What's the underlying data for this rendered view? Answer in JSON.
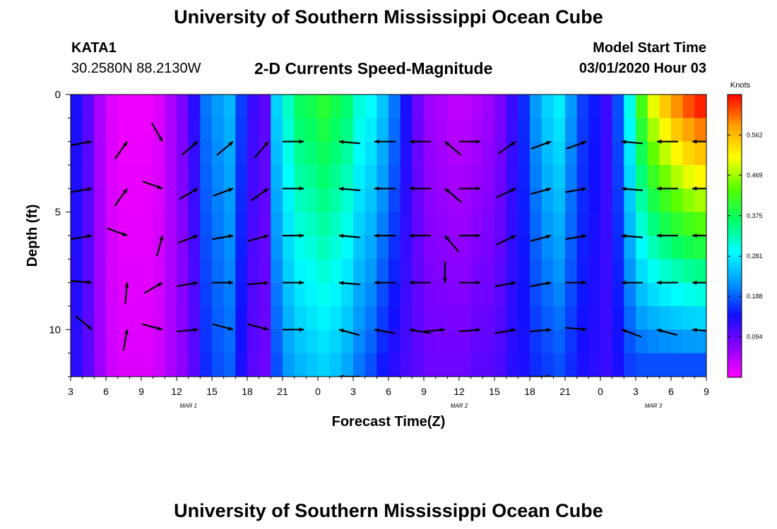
{
  "page": {
    "title_top": "University of Southern Mississippi Ocean Cube",
    "title_bottom": "University of Southern Mississippi Ocean Cube",
    "station_id": "KATA1",
    "station_coords": "30.2580N 88.2130W",
    "plot_title": "2-D Currents Speed-Magnitude",
    "model_start_label": "Model Start Time",
    "model_start_value": "03/01/2020 Hour 03"
  },
  "chart_data": {
    "type": "heatmap",
    "title": "2-D Currents Speed-Magnitude",
    "xlabel": "Forecast Time(Z)",
    "ylabel": "Depth (ft)",
    "x_range_hours": [
      0,
      54
    ],
    "y_range_ft": [
      0,
      12
    ],
    "y_reversed": true,
    "x_tick_labels": [
      "3",
      "6",
      "9",
      "12",
      "15",
      "18",
      "21",
      "0",
      "3",
      "6",
      "9",
      "12",
      "15",
      "18",
      "21",
      "0",
      "3",
      "6",
      "9"
    ],
    "date_labels": [
      {
        "text": "MAR 1",
        "hour": 10
      },
      {
        "text": "MAR 2",
        "hour": 33
      },
      {
        "text": "MAR 3",
        "hour": 49.5
      }
    ],
    "y_ticks": [
      {
        "label": "0",
        "value": 0
      },
      {
        "label": "5",
        "value": 5
      },
      {
        "label": "10",
        "value": 10
      }
    ],
    "colorbar": {
      "unit": "Knots",
      "min": 0.0,
      "max": 0.656,
      "ticks": [
        "0.094",
        "0.188",
        "0.281",
        "0.375",
        "0.469",
        "0.562"
      ],
      "tick_values": [
        0.094,
        0.188,
        0.281,
        0.375,
        0.469,
        0.562
      ],
      "colors": [
        "#ff00ff",
        "#8800ff",
        "#1010ff",
        "#0099ff",
        "#00ffff",
        "#00ff66",
        "#55ff00",
        "#ffff00",
        "#ffa000",
        "#ff0000"
      ]
    },
    "time_columns_hours": [
      0,
      1,
      2,
      3,
      4,
      5,
      6,
      7,
      8,
      9,
      10,
      11,
      12,
      13,
      14,
      15,
      16,
      17,
      18,
      19,
      20,
      21,
      22,
      23,
      24,
      25,
      26,
      27,
      28,
      29,
      30,
      31,
      32,
      33,
      34,
      35,
      36,
      37,
      38,
      39,
      40,
      41,
      42,
      43,
      44,
      45,
      46,
      47,
      48,
      49,
      50,
      51,
      52,
      53
    ],
    "depth_rows_ft": [
      0,
      1,
      2,
      3,
      4,
      5,
      6,
      7,
      8,
      9,
      10,
      11
    ],
    "surface_speed_knots": [
      0.14,
      0.1,
      0.05,
      0.02,
      0.01,
      0.01,
      0.01,
      0.02,
      0.05,
      0.08,
      0.13,
      0.2,
      0.22,
      0.24,
      0.17,
      0.12,
      0.1,
      0.26,
      0.32,
      0.37,
      0.38,
      0.4,
      0.38,
      0.36,
      0.31,
      0.29,
      0.25,
      0.2,
      0.14,
      0.09,
      0.06,
      0.05,
      0.04,
      0.04,
      0.05,
      0.06,
      0.08,
      0.12,
      0.16,
      0.22,
      0.26,
      0.28,
      0.22,
      0.17,
      0.15,
      0.12,
      0.18,
      0.3,
      0.42,
      0.5,
      0.55,
      0.59,
      0.62,
      0.64
    ],
    "bottom_speed_knots": [
      0.13,
      0.1,
      0.06,
      0.03,
      0.02,
      0.02,
      0.02,
      0.03,
      0.05,
      0.07,
      0.1,
      0.16,
      0.18,
      0.19,
      0.14,
      0.1,
      0.09,
      0.18,
      0.22,
      0.24,
      0.25,
      0.26,
      0.25,
      0.23,
      0.2,
      0.18,
      0.15,
      0.13,
      0.11,
      0.1,
      0.09,
      0.09,
      0.09,
      0.09,
      0.1,
      0.1,
      0.11,
      0.13,
      0.14,
      0.16,
      0.17,
      0.18,
      0.16,
      0.14,
      0.13,
      0.12,
      0.14,
      0.17,
      0.18,
      0.18,
      0.18,
      0.18,
      0.18,
      0.18
    ],
    "arrow_depths_ft": [
      2,
      4,
      6,
      8,
      10
    ],
    "arrow_times_hours": [
      3,
      6,
      9,
      12,
      15,
      18,
      21,
      24,
      27,
      30,
      33,
      36,
      39,
      42,
      45,
      48,
      51,
      54
    ],
    "arrow_directions_deg": [
      [
        10,
        55,
        300,
        40,
        40,
        50,
        0,
        175,
        180,
        180,
        140,
        0,
        35,
        20,
        20,
        175,
        180,
        180
      ],
      [
        10,
        55,
        340,
        30,
        20,
        35,
        0,
        175,
        180,
        180,
        140,
        0,
        25,
        15,
        10,
        175,
        180,
        180
      ],
      [
        10,
        340,
        75,
        20,
        10,
        15,
        0,
        175,
        180,
        180,
        130,
        0,
        25,
        15,
        10,
        175,
        180,
        180
      ],
      [
        -5,
        85,
        30,
        10,
        0,
        5,
        0,
        175,
        180,
        180,
        270,
        0,
        10,
        10,
        0,
        180,
        180,
        180
      ],
      [
        -40,
        80,
        -15,
        5,
        -15,
        -15,
        0,
        165,
        170,
        170,
        5,
        5,
        10,
        5,
        -5,
        160,
        165,
        175
      ]
    ],
    "bottom_edge_arrows": [
      {
        "hour": 24,
        "direction_deg": 180
      },
      {
        "hour": 39,
        "direction_deg": 15
      },
      {
        "hour": 42,
        "direction_deg": 0
      }
    ]
  }
}
